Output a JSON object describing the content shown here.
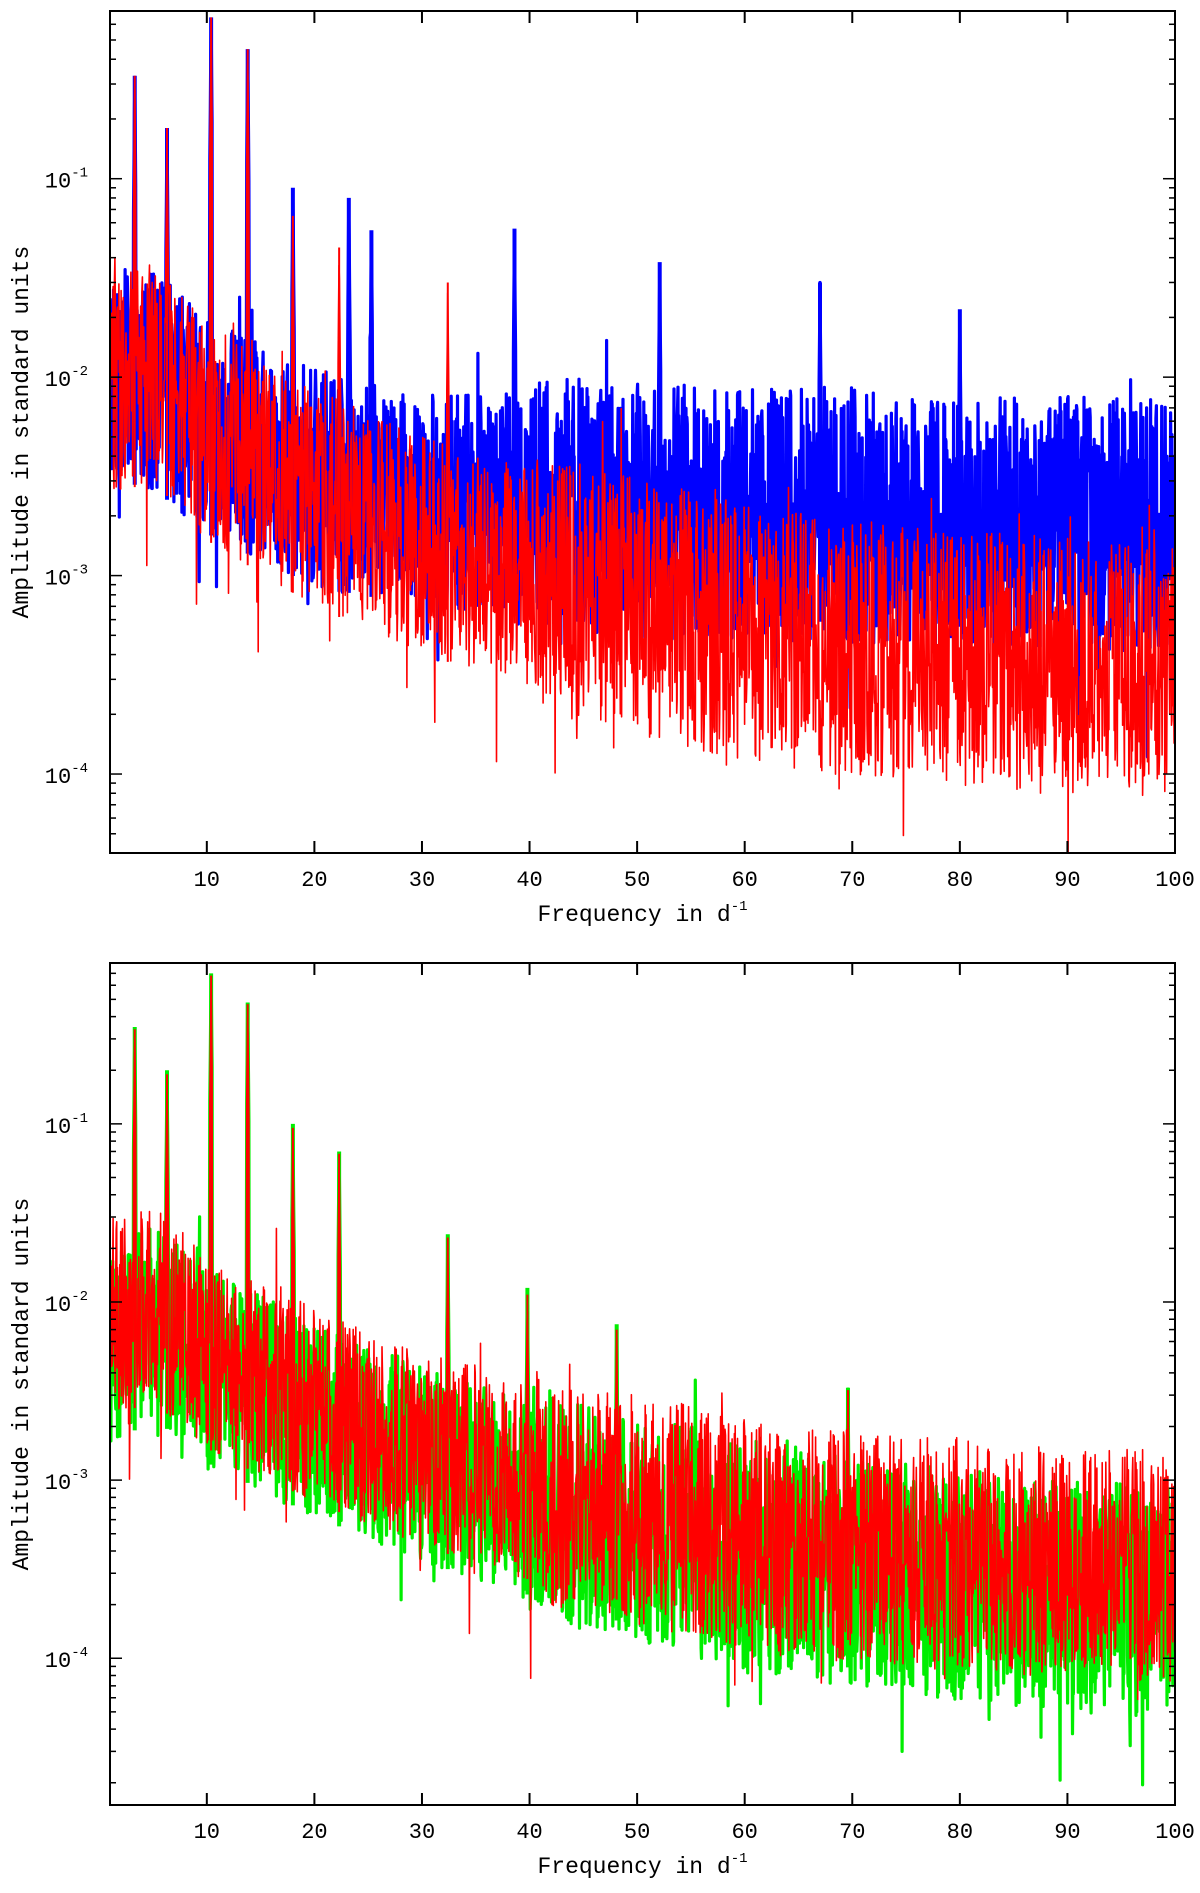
{
  "chart_data": [
    {
      "type": "line",
      "xlabel": "Frequency in d",
      "xlabel_superscript": "-1",
      "ylabel": "Amplitude in standard units",
      "yscale": "log",
      "xlim": [
        1,
        100
      ],
      "ylim": [
        4e-05,
        0.7
      ],
      "x_ticks": [
        10,
        20,
        30,
        40,
        50,
        60,
        70,
        80,
        90,
        100
      ],
      "x_tick_labels": [
        "10",
        "20",
        "30",
        "40",
        "50",
        "60",
        "70",
        "80",
        "90",
        "100"
      ],
      "y_ticks": [
        0.0001,
        0.001,
        0.01,
        0.1
      ],
      "y_tick_labels": [
        {
          "base": "10",
          "exp": "-4"
        },
        {
          "base": "10",
          "exp": "-3"
        },
        {
          "base": "10",
          "exp": "-2"
        },
        {
          "base": "10",
          "exp": "-1"
        }
      ],
      "series": [
        {
          "name": "blue",
          "color": "#0000ff",
          "noise_floor": {
            "x": [
              1,
              5,
              10,
              20,
              30,
              40,
              50,
              60,
              70,
              80,
              90,
              100
            ],
            "y": [
              0.012,
              0.011,
              0.0065,
              0.0035,
              0.0028,
              0.0026,
              0.0025,
              0.0024,
              0.0023,
              0.0022,
              0.0021,
              0.002
            ]
          },
          "peaks": [
            {
              "x": 3.3,
              "y": 0.33
            },
            {
              "x": 6.3,
              "y": 0.18
            },
            {
              "x": 10.4,
              "y": 0.65
            },
            {
              "x": 13.8,
              "y": 0.45
            },
            {
              "x": 18.0,
              "y": 0.09
            },
            {
              "x": 23.2,
              "y": 0.08
            },
            {
              "x": 25.3,
              "y": 0.055
            },
            {
              "x": 38.6,
              "y": 0.056
            },
            {
              "x": 52.1,
              "y": 0.038
            },
            {
              "x": 67.0,
              "y": 0.03
            },
            {
              "x": 80.0,
              "y": 0.022
            }
          ]
        },
        {
          "name": "red",
          "color": "#ff0000",
          "noise_floor": {
            "x": [
              1,
              5,
              10,
              20,
              30,
              40,
              50,
              60,
              70,
              80,
              90,
              100
            ],
            "y": [
              0.01,
              0.012,
              0.006,
              0.0028,
              0.0016,
              0.0011,
              0.0008,
              0.0006,
              0.0005,
              0.00045,
              0.0004,
              0.00038
            ]
          },
          "peaks": [
            {
              "x": 3.3,
              "y": 0.33
            },
            {
              "x": 6.3,
              "y": 0.18
            },
            {
              "x": 10.4,
              "y": 0.65
            },
            {
              "x": 13.8,
              "y": 0.45
            },
            {
              "x": 18.0,
              "y": 0.065
            },
            {
              "x": 22.3,
              "y": 0.045
            },
            {
              "x": 32.4,
              "y": 0.03
            }
          ]
        }
      ]
    },
    {
      "type": "line",
      "xlabel": "Frequency in d",
      "xlabel_superscript": "-1",
      "ylabel": "Amplitude in standard units",
      "yscale": "log",
      "xlim": [
        1,
        100
      ],
      "ylim": [
        1.5e-05,
        0.8
      ],
      "x_ticks": [
        10,
        20,
        30,
        40,
        50,
        60,
        70,
        80,
        90,
        100
      ],
      "x_tick_labels": [
        "10",
        "20",
        "30",
        "40",
        "50",
        "60",
        "70",
        "80",
        "90",
        "100"
      ],
      "y_ticks": [
        0.0001,
        0.001,
        0.01,
        0.1
      ],
      "y_tick_labels": [
        {
          "base": "10",
          "exp": "-4"
        },
        {
          "base": "10",
          "exp": "-3"
        },
        {
          "base": "10",
          "exp": "-2"
        },
        {
          "base": "10",
          "exp": "-1"
        }
      ],
      "series": [
        {
          "name": "green",
          "color": "#00ee00",
          "noise_floor": {
            "x": [
              1,
              5,
              10,
              20,
              30,
              40,
              50,
              60,
              70,
              80,
              90,
              100
            ],
            "y": [
              0.006,
              0.009,
              0.005,
              0.0025,
              0.0014,
              0.0009,
              0.0006,
              0.00045,
              0.00035,
              0.0003,
              0.00026,
              0.00024
            ]
          },
          "peaks": [
            {
              "x": 3.3,
              "y": 0.35
            },
            {
              "x": 6.3,
              "y": 0.2
            },
            {
              "x": 10.4,
              "y": 0.7
            },
            {
              "x": 13.8,
              "y": 0.48
            },
            {
              "x": 18.0,
              "y": 0.1
            },
            {
              "x": 22.3,
              "y": 0.07
            },
            {
              "x": 32.4,
              "y": 0.024
            },
            {
              "x": 39.8,
              "y": 0.012
            },
            {
              "x": 48.1,
              "y": 0.0075
            },
            {
              "x": 69.6,
              "y": 0.0033
            }
          ]
        },
        {
          "name": "red",
          "color": "#ff0000",
          "noise_floor": {
            "x": [
              1,
              5,
              10,
              20,
              30,
              40,
              50,
              60,
              70,
              80,
              90,
              100
            ],
            "y": [
              0.009,
              0.011,
              0.006,
              0.003,
              0.0017,
              0.0011,
              0.0008,
              0.0006,
              0.0005,
              0.00045,
              0.0004,
              0.00038
            ]
          },
          "peaks": [
            {
              "x": 3.3,
              "y": 0.34
            },
            {
              "x": 6.3,
              "y": 0.19
            },
            {
              "x": 10.4,
              "y": 0.68
            },
            {
              "x": 13.8,
              "y": 0.47
            },
            {
              "x": 18.0,
              "y": 0.095
            },
            {
              "x": 22.3,
              "y": 0.068
            },
            {
              "x": 32.4,
              "y": 0.023
            },
            {
              "x": 39.8,
              "y": 0.011
            },
            {
              "x": 48.1,
              "y": 0.007
            },
            {
              "x": 69.6,
              "y": 0.0032
            }
          ]
        }
      ]
    }
  ]
}
